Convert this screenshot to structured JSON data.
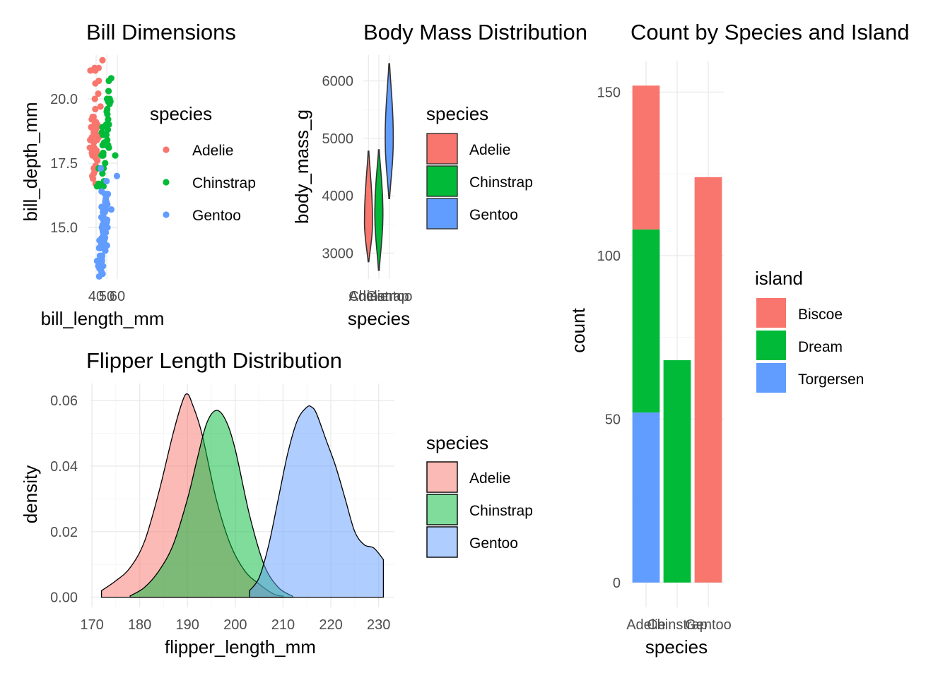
{
  "colors": {
    "species": {
      "Adelie": "#F8766D",
      "Chinstrap": "#00BA38",
      "Gentoo": "#619CFF"
    },
    "island": {
      "Biscoe": "#F8766D",
      "Dream": "#00BA38",
      "Torgersen": "#619CFF"
    }
  },
  "chart_data": [
    {
      "id": "bill",
      "type": "scatter",
      "title": "Bill Dimensions",
      "xlabel": "bill_length_mm",
      "ylabel": "bill_depth_mm",
      "xlim": [
        32,
        60
      ],
      "ylim": [
        13.0,
        21.7
      ],
      "xticks": [
        40,
        50,
        60
      ],
      "xtick_labels": [
        "40",
        "50",
        "60"
      ],
      "yticks": [
        15.0,
        17.5,
        20.0
      ],
      "ytick_labels": [
        "15.0",
        "17.5",
        "20.0"
      ],
      "grid": true,
      "legend": {
        "title": "species",
        "position": "right",
        "entries": [
          "Adelie",
          "Chinstrap",
          "Gentoo"
        ]
      },
      "series": [
        {
          "name": "Adelie",
          "x": [
            39.1,
            39.5,
            40.3,
            36.7,
            39.3,
            38.9,
            39.2,
            34.1,
            42.0,
            37.8,
            37.8,
            41.1,
            38.6,
            34.6,
            36.6,
            38.7,
            42.5,
            34.4,
            46.0,
            37.8,
            37.7,
            35.9,
            38.2,
            38.8,
            35.3,
            40.6,
            40.5,
            37.9,
            40.5,
            39.5,
            37.2,
            39.5,
            40.9,
            36.4,
            39.2,
            38.8,
            42.2,
            37.6,
            39.8,
            36.5,
            40.8,
            36.0,
            44.1,
            37.0,
            39.6,
            41.1,
            37.5,
            36.0,
            42.3,
            39.6
          ],
          "y": [
            18.7,
            17.4,
            18.0,
            19.3,
            20.6,
            17.8,
            19.6,
            18.1,
            20.2,
            17.1,
            17.3,
            17.6,
            21.2,
            21.1,
            17.8,
            19.0,
            20.7,
            18.4,
            21.5,
            18.3,
            18.7,
            19.2,
            18.1,
            17.2,
            18.9,
            18.6,
            17.9,
            18.6,
            18.9,
            16.7,
            18.1,
            17.8,
            18.9,
            17.0,
            21.1,
            20.0,
            18.5,
            19.3,
            19.1,
            18.0,
            18.4,
            18.5,
            19.7,
            16.9,
            18.8,
            19.0,
            18.9,
            17.9,
            21.2,
            17.7
          ]
        },
        {
          "name": "Chinstrap",
          "x": [
            46.5,
            50.0,
            51.3,
            45.4,
            52.7,
            45.2,
            46.1,
            51.3,
            46.0,
            51.3,
            46.6,
            51.7,
            47.0,
            52.0,
            45.9,
            50.5,
            50.3,
            58.0,
            46.4,
            49.2,
            42.4,
            48.5,
            43.2,
            50.6,
            46.7,
            52.0,
            50.5,
            49.5,
            46.4,
            52.8,
            40.9,
            54.2,
            42.5,
            51.0,
            49.7,
            47.5,
            47.6,
            52.0,
            46.9,
            53.5
          ],
          "y": [
            17.9,
            19.5,
            19.2,
            18.7,
            19.8,
            17.8,
            18.2,
            18.2,
            18.9,
            19.9,
            17.8,
            20.3,
            17.3,
            18.1,
            17.1,
            19.6,
            20.0,
            17.8,
            18.6,
            18.2,
            17.3,
            17.5,
            16.6,
            19.4,
            17.9,
            19.0,
            18.4,
            19.0,
            17.8,
            20.0,
            16.6,
            20.8,
            16.7,
            18.8,
            18.6,
            16.8,
            18.3,
            20.7,
            16.6,
            19.9
          ]
        },
        {
          "name": "Gentoo",
          "x": [
            46.1,
            50.0,
            48.7,
            50.0,
            47.6,
            46.5,
            45.4,
            46.7,
            43.3,
            46.8,
            40.9,
            49.0,
            45.5,
            48.4,
            45.8,
            49.3,
            42.0,
            49.2,
            46.2,
            48.7,
            50.2,
            45.1,
            46.5,
            46.3,
            42.9,
            46.1,
            44.5,
            47.8,
            48.2,
            50.0,
            47.3,
            42.8,
            45.1,
            59.6,
            49.1,
            48.4,
            42.6,
            44.4,
            44.0,
            48.7,
            42.7,
            49.6,
            45.3,
            49.6,
            50.5,
            43.6,
            45.5,
            50.5,
            44.9,
            45.2,
            46.6,
            48.5,
            45.1,
            50.1,
            46.5,
            45.0,
            43.8,
            45.5,
            43.2,
            50.4,
            45.3,
            46.2,
            45.7,
            54.3,
            45.8,
            49.8,
            46.2,
            49.5,
            43.5,
            50.7,
            47.7,
            46.4,
            48.2,
            46.5,
            46.4,
            48.6,
            47.5,
            51.1,
            45.2,
            45.2
          ],
          "y": [
            13.2,
            16.3,
            14.1,
            15.2,
            14.5,
            13.5,
            14.6,
            15.3,
            13.4,
            15.4,
            13.7,
            16.1,
            13.7,
            14.6,
            14.6,
            15.7,
            13.5,
            15.2,
            14.5,
            15.1,
            14.3,
            14.5,
            14.5,
            15.8,
            13.1,
            15.1,
            14.3,
            15.0,
            14.3,
            15.3,
            15.3,
            14.2,
            14.5,
            17.0,
            14.8,
            16.3,
            13.7,
            17.3,
            13.6,
            15.7,
            13.7,
            16.0,
            13.7,
            15.0,
            15.9,
            13.9,
            13.9,
            15.9,
            13.3,
            15.8,
            14.2,
            14.1,
            14.4,
            15.0,
            14.4,
            15.4,
            13.9,
            15.0,
            14.5,
            15.3,
            13.8,
            14.9,
            13.9,
            15.7,
            14.2,
            16.8,
            14.4,
            16.2,
            14.2,
            15.0,
            15.0,
            15.6,
            15.6,
            14.8,
            15.0,
            16.0,
            14.2,
            16.3,
            13.8,
            16.4
          ]
        }
      ]
    },
    {
      "id": "mass",
      "type": "violin",
      "title": "Body Mass Distribution",
      "xlabel": "species",
      "ylabel": "body_mass_g",
      "categories": [
        "Adelie",
        "Chinstrap",
        "Gentoo"
      ],
      "ylim": [
        2550,
        6450
      ],
      "yticks": [
        3000,
        4000,
        5000,
        6000
      ],
      "ytick_labels": [
        "3000",
        "4000",
        "5000",
        "6000"
      ],
      "grid": true,
      "legend": {
        "title": "species",
        "position": "right",
        "entries": [
          "Adelie",
          "Chinstrap",
          "Gentoo"
        ]
      },
      "series": [
        {
          "name": "Adelie",
          "min": 2850,
          "max": 4775,
          "mode": 3550
        },
        {
          "name": "Chinstrap",
          "min": 2700,
          "max": 4800,
          "mode": 3700
        },
        {
          "name": "Gentoo",
          "min": 3950,
          "max": 6300,
          "mode": 5000
        }
      ]
    },
    {
      "id": "flipper",
      "type": "area",
      "title": "Flipper Length Distribution",
      "xlabel": "flipper_length_mm",
      "ylabel": "density",
      "xlim": [
        169.7,
        233.3
      ],
      "ylim": [
        -0.0031,
        0.0652
      ],
      "xticks": [
        170,
        180,
        190,
        200,
        210,
        220,
        230
      ],
      "xtick_labels": [
        "170",
        "180",
        "190",
        "200",
        "210",
        "220",
        "230"
      ],
      "yticks": [
        0.0,
        0.02,
        0.04,
        0.06
      ],
      "ytick_labels": [
        "0.00",
        "0.02",
        "0.04",
        "0.06"
      ],
      "grid": true,
      "legend": {
        "title": "species",
        "position": "right",
        "entries": [
          "Adelie",
          "Chinstrap",
          "Gentoo"
        ]
      },
      "series": [
        {
          "name": "Adelie",
          "x": [
            172,
            175,
            178,
            181,
            184,
            187,
            189,
            190,
            191,
            193,
            196,
            199,
            202,
            205,
            208,
            210
          ],
          "y": [
            0.002,
            0.005,
            0.009,
            0.017,
            0.032,
            0.05,
            0.06,
            0.062,
            0.059,
            0.05,
            0.03,
            0.016,
            0.008,
            0.004,
            0.001,
            0.0003
          ]
        },
        {
          "name": "Chinstrap",
          "x": [
            178,
            181,
            184,
            187,
            190,
            192,
            194,
            196,
            198,
            200,
            203,
            206,
            209,
            212
          ],
          "y": [
            0.0004,
            0.003,
            0.008,
            0.016,
            0.03,
            0.042,
            0.053,
            0.057,
            0.054,
            0.045,
            0.025,
            0.01,
            0.003,
            0.0003
          ]
        },
        {
          "name": "Gentoo",
          "x": [
            203,
            205,
            207,
            209,
            211,
            213,
            215,
            216,
            217,
            219,
            221,
            223,
            225,
            227,
            229,
            231
          ],
          "y": [
            0.002,
            0.006,
            0.016,
            0.03,
            0.044,
            0.054,
            0.058,
            0.058,
            0.056,
            0.048,
            0.04,
            0.03,
            0.02,
            0.016,
            0.015,
            0.0115
          ]
        }
      ]
    },
    {
      "id": "count",
      "type": "bar",
      "stacked": true,
      "title": "Count by Species and Island",
      "xlabel": "species",
      "ylabel": "count",
      "categories": [
        "Adelie",
        "Chinstrap",
        "Gentoo"
      ],
      "ylim": [
        -7.6,
        159.6
      ],
      "yticks": [
        0,
        50,
        100,
        150
      ],
      "ytick_labels": [
        "0",
        "50",
        "100",
        "150"
      ],
      "grid": true,
      "legend": {
        "title": "island",
        "position": "right",
        "entries": [
          "Biscoe",
          "Dream",
          "Torgersen"
        ]
      },
      "series": [
        {
          "name": "Torgersen",
          "values": [
            52,
            0,
            0
          ]
        },
        {
          "name": "Dream",
          "values": [
            56,
            68,
            0
          ]
        },
        {
          "name": "Biscoe",
          "values": [
            44,
            0,
            124
          ]
        }
      ]
    }
  ]
}
